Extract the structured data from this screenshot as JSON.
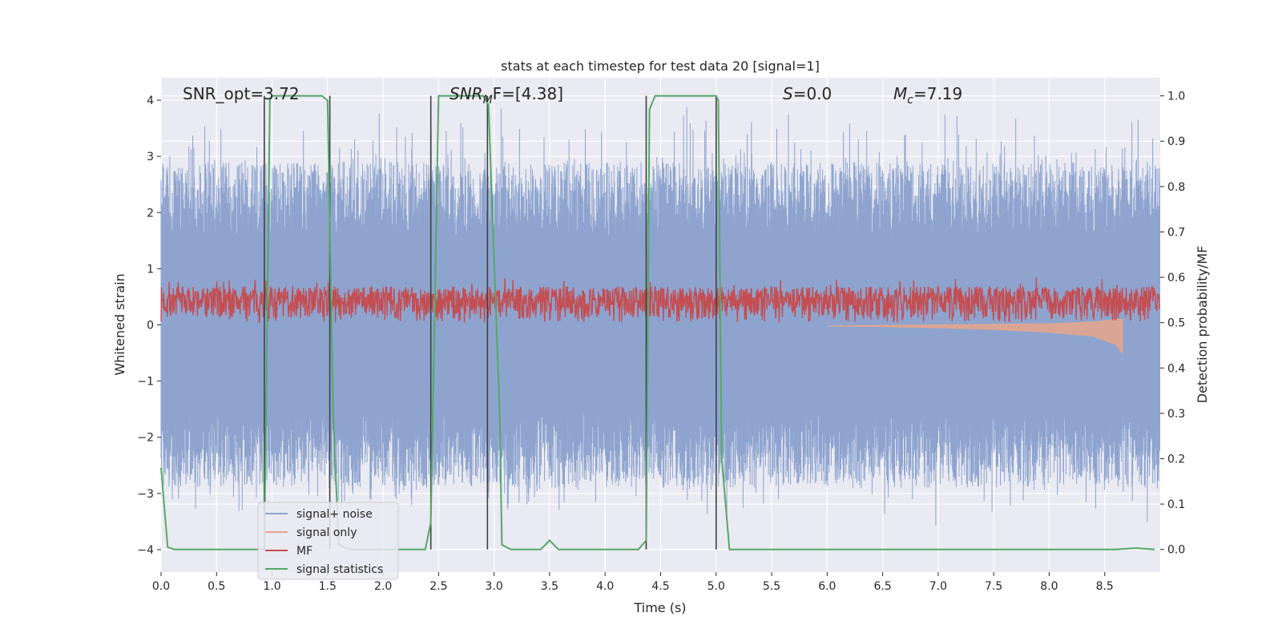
{
  "chart_data": {
    "type": "line",
    "title": "stats at each timestep for test data 20 [signal=1]",
    "xlabel": "Time (s)",
    "ylabel": "Whitened strain",
    "y2label": "Detection probability/MF",
    "xlim": [
      0,
      9.0
    ],
    "ylim": [
      -4.4,
      4.4
    ],
    "y2lim": [
      -0.05,
      1.04
    ],
    "grid": true,
    "x_ticks": [
      0.0,
      0.5,
      1.0,
      1.5,
      2.0,
      2.5,
      3.0,
      3.5,
      4.0,
      4.5,
      5.0,
      5.5,
      6.0,
      6.5,
      7.0,
      7.5,
      8.0,
      8.5
    ],
    "x_tick_labels": [
      "0.0",
      "0.5",
      "1.0",
      "1.5",
      "2.0",
      "2.5",
      "3.0",
      "3.5",
      "4.0",
      "4.5",
      "5.0",
      "5.5",
      "6.0",
      "6.5",
      "7.0",
      "7.5",
      "8.0",
      "8.5"
    ],
    "y_ticks": [
      4,
      3,
      2,
      1,
      0,
      -1,
      -2,
      -3,
      -4
    ],
    "y_tick_labels": [
      "4",
      "3",
      "2",
      "1",
      "0",
      "−1",
      "−2",
      "−3",
      "−4"
    ],
    "y2_ticks": [
      1.0,
      0.9,
      0.8,
      0.7,
      0.6,
      0.5,
      0.4,
      0.3,
      0.2,
      0.1,
      0.0
    ],
    "y2_tick_labels": [
      "1.0",
      "0.9",
      "0.8",
      "0.7",
      "0.6",
      "0.5",
      "0.4",
      "0.3",
      "0.2",
      "0.1",
      "0.0"
    ],
    "annotations": {
      "snr_opt": "SNR_opt=3.72",
      "snr_mf_main": "SNR",
      "snr_mf_sub": "M",
      "snr_mf_rest": "F=[4.38]",
      "s_main": "S",
      "s_rest": "=0.0",
      "mc_main": "M",
      "mc_sub": "c",
      "mc_rest": "=7.19"
    },
    "legend": {
      "placement": "lower-left",
      "entries": [
        "signal+ noise",
        "signal only",
        "MF",
        "signal statistics"
      ]
    },
    "series": [
      {
        "name": "signal+ noise",
        "color": "#8ea4cf",
        "style": "noise",
        "band_upper": [
          1.6,
          2.9
        ],
        "band_lower": [
          -1.6,
          -2.9
        ],
        "peak_range": [
          -3.6,
          4.0
        ]
      },
      {
        "name": "signal only",
        "color": "#e7a68a",
        "points": [
          [
            6.0,
            -0.02
          ],
          [
            6.5,
            -0.03
          ],
          [
            7.0,
            -0.05
          ],
          [
            7.5,
            -0.08
          ],
          [
            8.0,
            -0.13
          ],
          [
            8.4,
            -0.2
          ],
          [
            8.6,
            -0.35
          ],
          [
            8.66,
            -0.5
          ],
          [
            8.66,
            0.1
          ],
          [
            8.6,
            0.1
          ],
          [
            8.4,
            0.05
          ],
          [
            8.0,
            0.02
          ],
          [
            7.0,
            0.0
          ]
        ]
      },
      {
        "name": "MF",
        "color": "#c44e52",
        "style": "noise",
        "base": 0.5,
        "amplitude": [
          0.0,
          0.08
        ],
        "axis": "y2"
      },
      {
        "name": "signal statistics",
        "color": "#55a868",
        "axis": "y2",
        "points": [
          [
            0.0,
            0.18
          ],
          [
            0.06,
            0.005
          ],
          [
            0.12,
            0.0
          ],
          [
            0.9,
            0.0
          ],
          [
            0.93,
            0.0
          ],
          [
            0.98,
            0.99
          ],
          [
            1.0,
            1.0
          ],
          [
            1.45,
            1.0
          ],
          [
            1.5,
            0.99
          ],
          [
            1.55,
            0.3
          ],
          [
            1.6,
            0.01
          ],
          [
            1.7,
            0.0
          ],
          [
            2.38,
            0.0
          ],
          [
            2.43,
            0.06
          ],
          [
            2.5,
            1.0
          ],
          [
            2.9,
            1.0
          ],
          [
            2.95,
            0.98
          ],
          [
            3.05,
            0.3
          ],
          [
            3.07,
            0.01
          ],
          [
            3.15,
            0.0
          ],
          [
            3.42,
            0.0
          ],
          [
            3.5,
            0.02
          ],
          [
            3.58,
            0.0
          ],
          [
            4.3,
            0.0
          ],
          [
            4.37,
            0.02
          ],
          [
            4.4,
            0.97
          ],
          [
            4.45,
            1.0
          ],
          [
            5.0,
            1.0
          ],
          [
            5.02,
            0.99
          ],
          [
            5.05,
            0.2
          ],
          [
            5.12,
            0.0
          ],
          [
            8.6,
            0.0
          ],
          [
            8.78,
            0.003
          ],
          [
            8.95,
            0.0
          ]
        ]
      }
    ],
    "vertical_markers": {
      "color": "#404040",
      "x": [
        0.93,
        1.52,
        2.43,
        2.94,
        4.37,
        5.0
      ]
    }
  }
}
